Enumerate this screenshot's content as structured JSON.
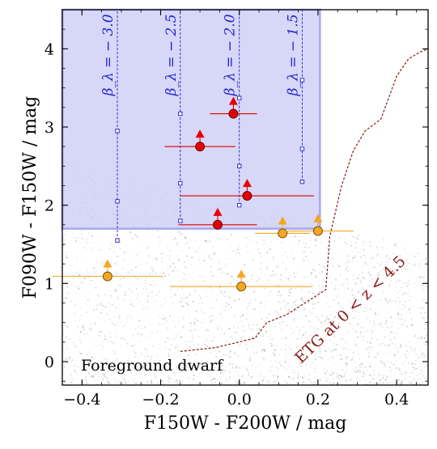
{
  "chart_data": {
    "type": "scatter",
    "xlabel": "F150W - F200W / mag",
    "ylabel": "F090W - F150W / mag",
    "xlim": [
      -0.45,
      0.48
    ],
    "ylim": [
      -0.3,
      4.5
    ],
    "xticks": [
      -0.4,
      -0.2,
      0.0,
      0.2,
      0.4
    ],
    "xtick_labels": [
      "−0.4",
      "−0.2",
      "0.0",
      "0.2",
      "0.4"
    ],
    "yticks": [
      0,
      1,
      2,
      3,
      4
    ],
    "ytick_labels": [
      "0",
      "1",
      "2",
      "3",
      "4"
    ],
    "selection_region": {
      "x": [
        -0.45,
        0.205
      ],
      "y": [
        1.7,
        4.5
      ],
      "color": "#c9c9f5"
    },
    "beta_tracks": [
      {
        "label": "β_λ = − 3.0",
        "x": -0.31,
        "y": [
          1.55,
          2.05,
          2.95
        ]
      },
      {
        "label": "β_λ = − 2.5",
        "x": -0.15,
        "y": [
          1.8,
          2.28,
          3.17
        ]
      },
      {
        "label": "β_λ = − 2.0",
        "x": 0.0,
        "y": [
          2.0,
          2.5,
          3.37
        ]
      },
      {
        "label": "β_λ = − 1.5",
        "x": 0.16,
        "y": [
          2.3,
          2.72,
          3.6
        ]
      }
    ],
    "red_points": [
      {
        "x": -0.1,
        "y": 2.75,
        "xerr": 0.09
      },
      {
        "x": -0.015,
        "y": 3.17,
        "xerr": 0.06
      },
      {
        "x": -0.055,
        "y": 1.75,
        "xerr": 0.1
      },
      {
        "x": 0.02,
        "y": 2.12,
        "xerr": 0.17
      }
    ],
    "orange_points": [
      {
        "x": -0.335,
        "y": 1.09,
        "xerr": 0.14
      },
      {
        "x": 0.005,
        "y": 0.96,
        "xerr": 0.18
      },
      {
        "x": 0.11,
        "y": 1.64,
        "xerr": 0.07
      },
      {
        "x": 0.2,
        "y": 1.67,
        "xerr": 0.09
      }
    ],
    "etg_track": {
      "x": [
        -0.15,
        -0.06,
        0.04,
        0.07,
        0.12,
        0.22,
        0.23,
        0.26,
        0.29,
        0.32,
        0.36,
        0.4,
        0.43,
        0.46,
        0.48
      ],
      "y": [
        0.13,
        0.18,
        0.3,
        0.5,
        0.6,
        0.92,
        1.6,
        2.25,
        2.7,
        2.95,
        3.1,
        3.65,
        3.87,
        3.96,
        4.0
      ],
      "color": "#8b1a1a"
    },
    "annotations": {
      "foreground": "Foreground dwarf",
      "etg": "ETG at 0 < z < 4.5"
    }
  }
}
